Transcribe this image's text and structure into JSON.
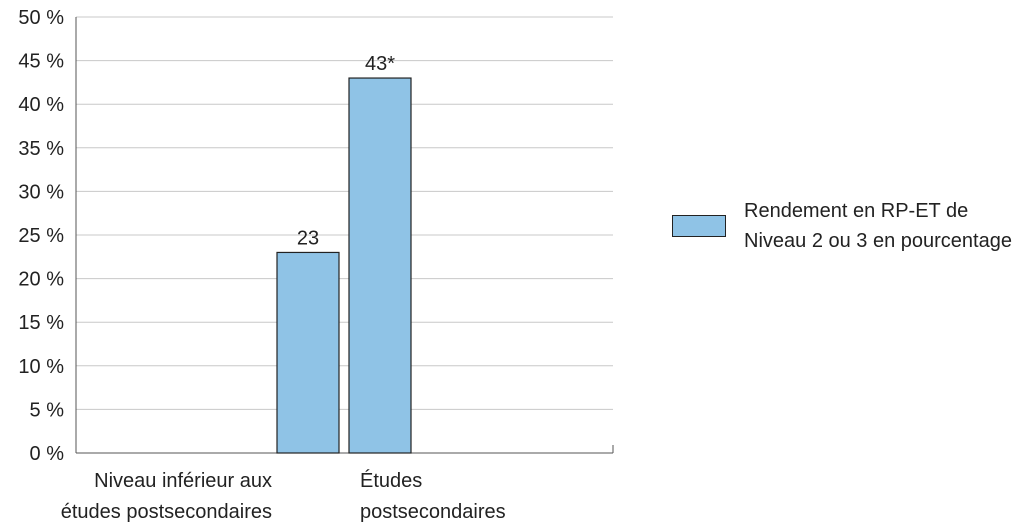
{
  "chart_data": {
    "type": "bar",
    "categories": [
      [
        "Niveau inférieur aux",
        "études postsecondaires"
      ],
      [
        "Études",
        "postsecondaires"
      ]
    ],
    "values": [
      23,
      43
    ],
    "data_labels": [
      "23",
      "43*"
    ],
    "series": [
      {
        "name": "Rendement en RP-ET de Niveau 2 ou 3 en pourcentage",
        "values": [
          23,
          43
        ]
      }
    ],
    "ylim": [
      0,
      50
    ],
    "yticks": [
      0,
      5,
      10,
      15,
      20,
      25,
      30,
      35,
      40,
      45,
      50
    ],
    "ytick_labels": [
      "0 %",
      "5 %",
      "10 %",
      "15 %",
      "20 %",
      "25 %",
      "30 %",
      "35 %",
      "40 %",
      "45 %",
      "50 %"
    ],
    "grid": true,
    "legend_position": "right",
    "bar_color": "#8fc3e6",
    "grid_color": "#c8c8c8"
  },
  "legend": {
    "line1": "Rendement en RP-ET de",
    "line2": "Niveau 2 ou 3 en pourcentage"
  }
}
